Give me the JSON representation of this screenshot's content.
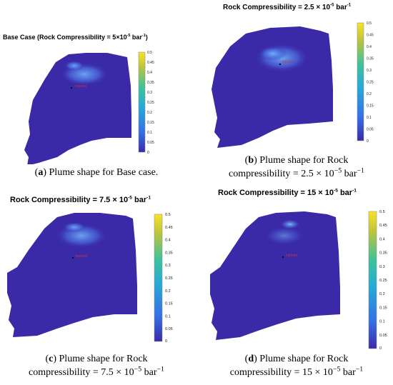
{
  "panels": [
    {
      "letter": "a",
      "title_prefix": "Base Case (Rock Compressibility = 5×10",
      "title_sup": "-5",
      "title_suffix": " bar",
      "title_sup2": "-1",
      "title_close": ")",
      "caption_line1": "Plume shape for Base case.",
      "caption_line2": "",
      "colorbar_ticks": [
        "0.5",
        "0.45",
        "0.4",
        "0.35",
        "0.3",
        "0.25",
        "0.2",
        "0.15",
        "0.1",
        "0.05",
        "0"
      ],
      "well_label": "Injector"
    },
    {
      "letter": "b",
      "title_prefix": "Rock Compressibility = 2.5  × 10",
      "title_sup": "-5",
      "title_suffix": "  bar",
      "title_sup2": "-1",
      "title_close": "",
      "caption_line1": "Plume shape for Rock",
      "caption_line2_pre": "compressibility = 2.5 × 10",
      "caption_line2_sup": "−5",
      "caption_line2_post": " bar",
      "caption_line2_sup2": "−1",
      "colorbar_ticks": [
        "0.5",
        "0.45",
        "0.4",
        "0.35",
        "0.3",
        "0.25",
        "0.2",
        "0.15",
        "0.1",
        "0.05",
        "0"
      ],
      "well_label": "Injector"
    },
    {
      "letter": "c",
      "title_prefix": "Rock Compressibility = 7.5 × 10",
      "title_sup": "-5",
      "title_suffix": "  bar",
      "title_sup2": "-1",
      "title_close": "",
      "caption_line1": "Plume shape for Rock",
      "caption_line2_pre": "compressibility = 7.5 × 10",
      "caption_line2_sup": "−5",
      "caption_line2_post": " bar",
      "caption_line2_sup2": "−1",
      "colorbar_ticks": [
        "0.5",
        "0.45",
        "0.4",
        "0.35",
        "0.3",
        "0.25",
        "0.2",
        "0.15",
        "0.1",
        "0.05",
        "0"
      ],
      "well_label": "Injector"
    },
    {
      "letter": "d",
      "title_prefix": "Rock Compressibility = 15 × 10",
      "title_sup": "-5",
      "title_suffix": "  bar",
      "title_sup2": "-1",
      "title_close": "",
      "caption_line1": "Plume shape for Rock",
      "caption_line2_pre": "compressibility = 15 × 10",
      "caption_line2_sup": "−5",
      "caption_line2_post": " bar",
      "caption_line2_sup2": "−1",
      "colorbar_ticks": [
        "0.5",
        "0.45",
        "0.4",
        "0.35",
        "0.3",
        "0.25",
        "0.2",
        "0.15",
        "0.1",
        "0.05",
        "0"
      ],
      "well_label": "Injector"
    }
  ],
  "colors": {
    "domain": "#3b2aa8",
    "plume_light": "#5aa0f0",
    "plume_mid": "#4a6be0",
    "colormap_top": "#f8e030",
    "colormap_mid": "#27b6a8",
    "colormap_bottom": "#3b2aa8",
    "well_label": "#d0304a"
  }
}
